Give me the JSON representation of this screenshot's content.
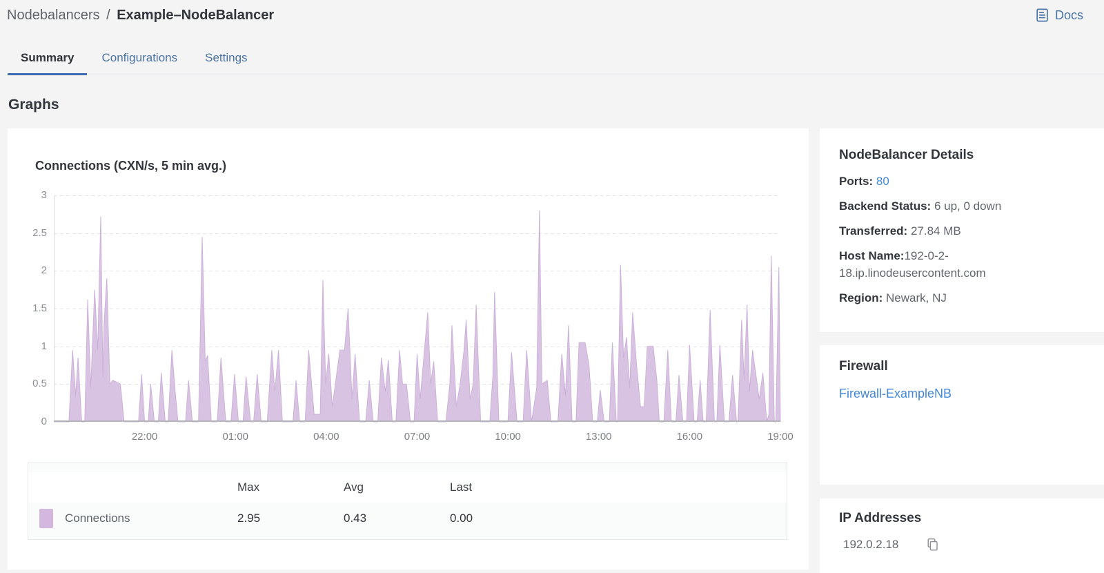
{
  "header": {
    "breadcrumb": {
      "section": "Nodebalancers",
      "separator": "/",
      "entity": "Example–NodeBalancer"
    },
    "docs_label": "Docs"
  },
  "tabs": [
    {
      "label": "Summary",
      "active": true
    },
    {
      "label": "Configurations",
      "active": false
    },
    {
      "label": "Settings",
      "active": false
    }
  ],
  "section_heading": "Graphs",
  "chart_data": {
    "type": "area",
    "title": "Connections (CXN/s, 5 min avg.)",
    "series_name": "Connections",
    "xlabel": "",
    "ylabel": "",
    "ylim": [
      0,
      3
    ],
    "y_ticks": [
      0,
      0.5,
      1,
      1.5,
      2,
      2.5,
      3
    ],
    "x_range_hours": 24,
    "x_ticks": [
      {
        "label": "22:00",
        "hour": 3
      },
      {
        "label": "01:00",
        "hour": 6
      },
      {
        "label": "04:00",
        "hour": 9
      },
      {
        "label": "07:00",
        "hour": 12
      },
      {
        "label": "10:00",
        "hour": 15
      },
      {
        "label": "13:00",
        "hour": 18
      },
      {
        "label": "16:00",
        "hour": 21
      },
      {
        "label": "19:00",
        "hour": 24
      }
    ],
    "grid": "horizontal-dashed",
    "fill_color": "#d9c3e2",
    "stroke_color": "#ccb1d9",
    "swatch_color": "#d3b7de",
    "points": [
      [
        0,
        0
      ],
      [
        0.5,
        0
      ],
      [
        0.62,
        0.95
      ],
      [
        0.72,
        0.35
      ],
      [
        0.8,
        0.85
      ],
      [
        0.92,
        0
      ],
      [
        1.02,
        0
      ],
      [
        1.12,
        1.62
      ],
      [
        1.22,
        0.45
      ],
      [
        1.35,
        1.75
      ],
      [
        1.45,
        0.95
      ],
      [
        1.55,
        2.72
      ],
      [
        1.62,
        0.6
      ],
      [
        1.66,
        1.3
      ],
      [
        1.75,
        1.9
      ],
      [
        1.85,
        0.5
      ],
      [
        1.95,
        0.55
      ],
      [
        2.2,
        0.5
      ],
      [
        2.32,
        0
      ],
      [
        2.8,
        0
      ],
      [
        2.9,
        0.63
      ],
      [
        3.0,
        0
      ],
      [
        3.12,
        0
      ],
      [
        3.2,
        0.5
      ],
      [
        3.32,
        0
      ],
      [
        3.45,
        0
      ],
      [
        3.55,
        0.65
      ],
      [
        3.68,
        0
      ],
      [
        3.78,
        0
      ],
      [
        3.9,
        0.95
      ],
      [
        4.0,
        0.45
      ],
      [
        4.1,
        0
      ],
      [
        4.35,
        0
      ],
      [
        4.45,
        0.55
      ],
      [
        4.58,
        0
      ],
      [
        4.78,
        0
      ],
      [
        4.9,
        2.45
      ],
      [
        5.0,
        0.8
      ],
      [
        5.08,
        0.88
      ],
      [
        5.2,
        0
      ],
      [
        5.4,
        0
      ],
      [
        5.52,
        0.85
      ],
      [
        5.68,
        0
      ],
      [
        5.85,
        0
      ],
      [
        5.97,
        0.63
      ],
      [
        6.1,
        0
      ],
      [
        6.25,
        0
      ],
      [
        6.35,
        0.6
      ],
      [
        6.5,
        0
      ],
      [
        6.6,
        0
      ],
      [
        6.72,
        0.63
      ],
      [
        6.85,
        0
      ],
      [
        7.05,
        0
      ],
      [
        7.2,
        0.95
      ],
      [
        7.3,
        0.4
      ],
      [
        7.42,
        0.95
      ],
      [
        7.55,
        0
      ],
      [
        7.9,
        0
      ],
      [
        8.0,
        0.55
      ],
      [
        8.12,
        0
      ],
      [
        8.3,
        0
      ],
      [
        8.42,
        0.95
      ],
      [
        8.6,
        0.1
      ],
      [
        8.8,
        0.1
      ],
      [
        8.89,
        1.88
      ],
      [
        8.98,
        0.5
      ],
      [
        9.08,
        0.9
      ],
      [
        9.2,
        0.2
      ],
      [
        9.45,
        0.95
      ],
      [
        9.6,
        0.95
      ],
      [
        9.72,
        1.5
      ],
      [
        9.85,
        0.3
      ],
      [
        9.95,
        0.9
      ],
      [
        10.1,
        0
      ],
      [
        10.3,
        0
      ],
      [
        10.42,
        0.55
      ],
      [
        10.55,
        0
      ],
      [
        10.7,
        0
      ],
      [
        10.82,
        0.85
      ],
      [
        10.95,
        0.4
      ],
      [
        11.05,
        0.82
      ],
      [
        11.18,
        0
      ],
      [
        11.3,
        0
      ],
      [
        11.42,
        0.95
      ],
      [
        11.52,
        0.5
      ],
      [
        11.65,
        0.5
      ],
      [
        11.78,
        0
      ],
      [
        11.9,
        0
      ],
      [
        12.0,
        0.9
      ],
      [
        12.1,
        0.3
      ],
      [
        12.35,
        1.45
      ],
      [
        12.45,
        0.5
      ],
      [
        12.55,
        0.8
      ],
      [
        12.68,
        0
      ],
      [
        12.95,
        0
      ],
      [
        13.08,
        0.5
      ],
      [
        13.15,
        1.28
      ],
      [
        13.3,
        0.2
      ],
      [
        13.42,
        0.5
      ],
      [
        13.55,
        0.95
      ],
      [
        13.62,
        1.35
      ],
      [
        13.75,
        0.3
      ],
      [
        13.85,
        0.5
      ],
      [
        13.95,
        1.55
      ],
      [
        14.1,
        0
      ],
      [
        14.4,
        0
      ],
      [
        14.5,
        0.6
      ],
      [
        14.56,
        1.72
      ],
      [
        14.7,
        0
      ],
      [
        15.0,
        0
      ],
      [
        15.12,
        0.92
      ],
      [
        15.3,
        0
      ],
      [
        15.5,
        0
      ],
      [
        15.62,
        0.95
      ],
      [
        15.78,
        0
      ],
      [
        15.95,
        0.45
      ],
      [
        16.04,
        2.8
      ],
      [
        16.12,
        0.5
      ],
      [
        16.3,
        0.55
      ],
      [
        16.42,
        0
      ],
      [
        16.65,
        0
      ],
      [
        16.78,
        0.9
      ],
      [
        16.9,
        0.35
      ],
      [
        17.0,
        1.28
      ],
      [
        17.12,
        0
      ],
      [
        17.25,
        0
      ],
      [
        17.35,
        1.05
      ],
      [
        17.55,
        1.05
      ],
      [
        17.68,
        0.75
      ],
      [
        17.8,
        0
      ],
      [
        17.95,
        0
      ],
      [
        18.05,
        0.42
      ],
      [
        18.18,
        0
      ],
      [
        18.35,
        0
      ],
      [
        18.45,
        1.05
      ],
      [
        18.58,
        0
      ],
      [
        18.62,
        0
      ],
      [
        18.72,
        2.08
      ],
      [
        18.82,
        0.85
      ],
      [
        18.92,
        1.12
      ],
      [
        19.02,
        0.45
      ],
      [
        19.12,
        1.45
      ],
      [
        19.25,
        0.75
      ],
      [
        19.38,
        0.2
      ],
      [
        19.5,
        0.2
      ],
      [
        19.6,
        1.0
      ],
      [
        19.8,
        1.0
      ],
      [
        19.92,
        0.55
      ],
      [
        20.0,
        0
      ],
      [
        20.15,
        0
      ],
      [
        20.28,
        0.95
      ],
      [
        20.4,
        0
      ],
      [
        20.55,
        0
      ],
      [
        20.65,
        0.62
      ],
      [
        20.78,
        0
      ],
      [
        20.9,
        0
      ],
      [
        21.0,
        1.02
      ],
      [
        21.15,
        0
      ],
      [
        21.25,
        0
      ],
      [
        21.35,
        0.55
      ],
      [
        21.45,
        0
      ],
      [
        21.55,
        0
      ],
      [
        21.68,
        1.48
      ],
      [
        21.82,
        0
      ],
      [
        21.9,
        0
      ],
      [
        22.0,
        1.02
      ],
      [
        22.15,
        0
      ],
      [
        22.3,
        0
      ],
      [
        22.42,
        0.62
      ],
      [
        22.55,
        0
      ],
      [
        22.6,
        0
      ],
      [
        22.72,
        1.35
      ],
      [
        22.8,
        0.55
      ],
      [
        22.9,
        1.55
      ],
      [
        22.98,
        0.4
      ],
      [
        23.08,
        0.95
      ],
      [
        23.2,
        0.6
      ],
      [
        23.3,
        0.3
      ],
      [
        23.42,
        0.65
      ],
      [
        23.55,
        0
      ],
      [
        23.62,
        0.1
      ],
      [
        23.7,
        2.2
      ],
      [
        23.8,
        0
      ],
      [
        23.85,
        0
      ],
      [
        23.95,
        2.05
      ],
      [
        24,
        0
      ]
    ],
    "legend": {
      "columns": [
        "Max",
        "Avg",
        "Last"
      ],
      "rows": [
        {
          "name": "Connections",
          "max": "2.95",
          "avg": "0.43",
          "last": "0.00"
        }
      ]
    }
  },
  "sidebar": {
    "details": {
      "title": "NodeBalancer Details",
      "rows": [
        {
          "label": "Ports:",
          "value": "80"
        },
        {
          "label": "Backend Status:",
          "value": "6 up, 0 down"
        },
        {
          "label": "Transferred:",
          "value": "27.84 MB"
        },
        {
          "label": "Host Name:",
          "value": "192-0-2-18.ip.linodeusercontent.com"
        },
        {
          "label": "Region:",
          "value": "Newark, NJ"
        }
      ]
    },
    "firewall": {
      "title": "Firewall",
      "link": "Firewall-ExampleNB"
    },
    "ip": {
      "title": "IP Addresses",
      "address": "192.0.2.18"
    }
  },
  "colors": {
    "page_background": "#f4f4f5",
    "card_background": "#ffffff",
    "active_tab_underline": "#3b6cb3",
    "muted_blue": "#4a73a4",
    "link_blue": "#4287d8",
    "area_fill": "#d9c3e2",
    "grid_line": "#e2e4e7",
    "axis_line": "#b3b5b8"
  }
}
